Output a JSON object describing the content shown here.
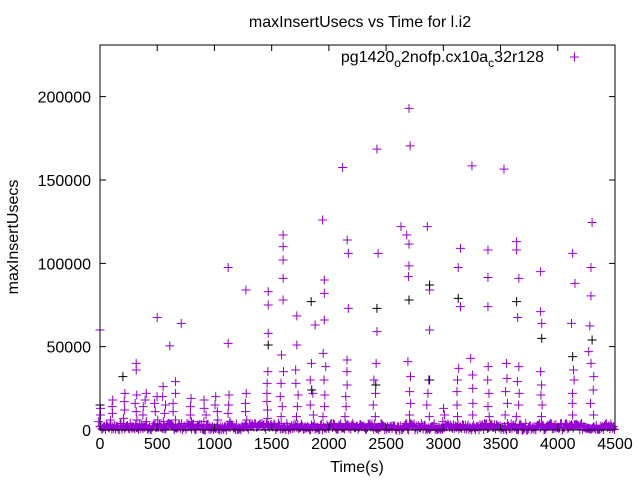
{
  "chart_data": {
    "type": "scatter",
    "title": "maxInsertUsecs vs Time for l.i2",
    "xlabel": "Time(s)",
    "ylabel": "maxInsertUsecs",
    "xlim": [
      0,
      4500
    ],
    "ylim": [
      0,
      231000
    ],
    "xticks": [
      0,
      500,
      1000,
      1500,
      2000,
      2500,
      3000,
      3500,
      4000,
      4500
    ],
    "yticks": [
      0,
      50000,
      100000,
      150000,
      200000
    ],
    "grid": false,
    "legend": {
      "placement": "top-right",
      "label_parts": [
        "pg1420",
        "o",
        "2nofp.cx10a",
        "c",
        "32r128"
      ]
    },
    "colors": {
      "series": "#9400d3",
      "secondary": "#000000"
    },
    "series": [
      {
        "name": "pg1420_o2nofp.cx10a_c32r128",
        "points": [
          [
            0,
            60000
          ],
          [
            500,
            67500
          ],
          [
            610,
            50500
          ],
          [
            710,
            64000
          ],
          [
            1120,
            97500
          ],
          [
            1120,
            52000
          ],
          [
            1275,
            84000
          ],
          [
            1470,
            83000
          ],
          [
            1470,
            75000
          ],
          [
            1470,
            58000
          ],
          [
            1600,
            117000
          ],
          [
            1600,
            110000
          ],
          [
            1600,
            102000
          ],
          [
            1600,
            91000
          ],
          [
            1600,
            78000
          ],
          [
            1720,
            68500
          ],
          [
            1720,
            51000
          ],
          [
            1880,
            63000
          ],
          [
            1945,
            126000
          ],
          [
            1960,
            90000
          ],
          [
            1960,
            82000
          ],
          [
            1960,
            66000
          ],
          [
            2120,
            157500
          ],
          [
            2160,
            114000
          ],
          [
            2170,
            106000
          ],
          [
            2170,
            73000
          ],
          [
            2420,
            168500
          ],
          [
            2430,
            106000
          ],
          [
            2420,
            59000
          ],
          [
            2700,
            193000
          ],
          [
            2710,
            170500
          ],
          [
            2630,
            122000
          ],
          [
            2680,
            117000
          ],
          [
            2700,
            111500
          ],
          [
            2700,
            98500
          ],
          [
            2695,
            92000
          ],
          [
            2860,
            122000
          ],
          [
            2880,
            84000
          ],
          [
            2880,
            60000
          ],
          [
            3130,
            97500
          ],
          [
            3150,
            109000
          ],
          [
            3150,
            74000
          ],
          [
            3250,
            158500
          ],
          [
            3390,
            108000
          ],
          [
            3390,
            91500
          ],
          [
            3390,
            74000
          ],
          [
            3530,
            156500
          ],
          [
            3640,
            113000
          ],
          [
            3640,
            108000
          ],
          [
            3660,
            91000
          ],
          [
            3650,
            67500
          ],
          [
            3850,
            95000
          ],
          [
            3850,
            71000
          ],
          [
            3860,
            64000
          ],
          [
            4130,
            106000
          ],
          [
            4150,
            88000
          ],
          [
            4120,
            64000
          ],
          [
            4300,
            124500
          ],
          [
            4290,
            97500
          ],
          [
            4290,
            80500
          ],
          [
            4280,
            62500
          ],
          [
            4270,
            47000
          ]
        ]
      },
      {
        "name": "secondary",
        "points": [
          [
            1470,
            51000
          ],
          [
            1845,
            77000
          ],
          [
            2420,
            73000
          ],
          [
            2700,
            78000
          ],
          [
            2880,
            87000
          ],
          [
            3130,
            79000
          ],
          [
            3640,
            77000
          ],
          [
            3860,
            55000
          ],
          [
            4130,
            44000
          ],
          [
            4300,
            54000
          ],
          [
            0,
            15000
          ],
          [
            200,
            32000
          ],
          [
            1850,
            24000
          ],
          [
            2410,
            27000
          ],
          [
            2880,
            30000
          ]
        ]
      }
    ],
    "clusters": [
      [
        0,
        [
          5000,
          9000,
          13000
        ]
      ],
      [
        100,
        [
          6000,
          10000,
          14000,
          18000
        ]
      ],
      [
        210,
        [
          7000,
          12000,
          17000,
          22000
        ]
      ],
      [
        310,
        [
          6000,
          11000,
          16000,
          21000,
          36000,
          40000
        ]
      ],
      [
        390,
        [
          5000,
          9000,
          14000,
          18000,
          22000
        ]
      ],
      [
        490,
        [
          6000,
          11000,
          16000,
          20000
        ]
      ],
      [
        560,
        [
          5000,
          10000,
          15000,
          20000,
          26000
        ]
      ],
      [
        650,
        [
          6000,
          11000,
          16000,
          22000,
          29000
        ]
      ],
      [
        790,
        [
          5000,
          9000,
          14000,
          19000
        ]
      ],
      [
        920,
        [
          5000,
          9000,
          13000,
          18000
        ]
      ],
      [
        1020,
        [
          6000,
          11000,
          15000,
          20000
        ]
      ],
      [
        1130,
        [
          5000,
          10000,
          15000,
          21000
        ]
      ],
      [
        1270,
        [
          6000,
          11000,
          16000,
          22000
        ]
      ],
      [
        1470,
        [
          7000,
          12000,
          17000,
          22000,
          28000,
          35000
        ]
      ],
      [
        1590,
        [
          8000,
          14000,
          20000,
          28000,
          35000,
          45000
        ]
      ],
      [
        1720,
        [
          8000,
          14000,
          21000,
          28000,
          36000
        ]
      ],
      [
        1850,
        [
          9000,
          15000,
          22000,
          30000,
          40000
        ]
      ],
      [
        1960,
        [
          8000,
          14000,
          21000,
          30000,
          38000,
          46000
        ]
      ],
      [
        2150,
        [
          8000,
          14000,
          20000,
          27000,
          35000,
          42000
        ]
      ],
      [
        2400,
        [
          8000,
          15000,
          22000,
          30000,
          40000
        ]
      ],
      [
        2700,
        [
          9000,
          16000,
          23000,
          32000,
          41000
        ]
      ],
      [
        2870,
        [
          8000,
          15000,
          22000,
          30000
        ]
      ],
      [
        3000,
        [
          5000,
          9000,
          13000
        ]
      ],
      [
        3130,
        [
          8000,
          15000,
          23000,
          30000,
          37000
        ]
      ],
      [
        3250,
        [
          9000,
          16000,
          25000,
          33000,
          43000
        ]
      ],
      [
        3390,
        [
          8000,
          14000,
          22000,
          30000,
          38000
        ]
      ],
      [
        3550,
        [
          9000,
          16000,
          23000,
          31000,
          40000
        ]
      ],
      [
        3650,
        [
          8000,
          15000,
          22000,
          29000,
          38000
        ]
      ],
      [
        3860,
        [
          8000,
          15000,
          21000,
          27000,
          35000
        ]
      ],
      [
        4130,
        [
          9000,
          16000,
          22000,
          30000,
          36000
        ]
      ],
      [
        4300,
        [
          9000,
          16000,
          24000,
          32000,
          40000
        ]
      ]
    ],
    "baseline": {
      "x_step": 8,
      "y_max": 4000
    }
  }
}
